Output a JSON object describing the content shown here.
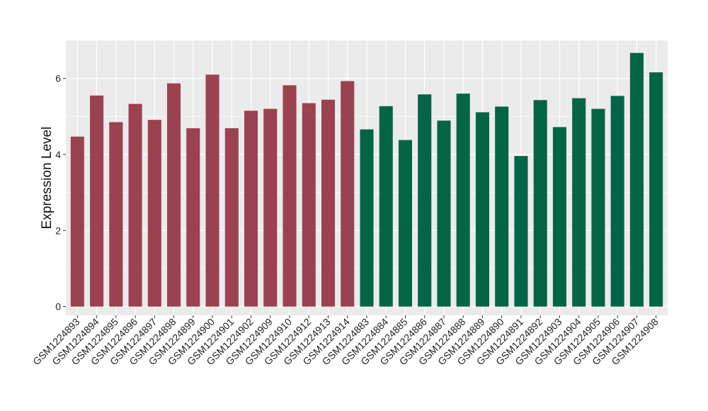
{
  "chart_data": {
    "type": "bar",
    "title": "",
    "xlabel": "",
    "ylabel": "Expression Level",
    "ylim": [
      -0.23,
      7.0
    ],
    "yticks": [
      0,
      2,
      4,
      6
    ],
    "grid": true,
    "legend": "none",
    "background_color": "#ebebeb",
    "grid_color": "#ffffff",
    "series": [
      {
        "color": "#9b4250",
        "categories": [
          "GSM1224893",
          "GSM1224894",
          "GSM1224895",
          "GSM1224896",
          "GSM1224897",
          "GSM1224898",
          "GSM1224899",
          "GSM1224900",
          "GSM1224901",
          "GSM1224902",
          "GSM1224909",
          "GSM1224910",
          "GSM1224912",
          "GSM1224913",
          "GSM1224914"
        ],
        "values": [
          4.47,
          5.55,
          4.85,
          5.33,
          4.91,
          5.87,
          4.69,
          6.1,
          4.69,
          5.15,
          5.2,
          5.82,
          5.35,
          5.44,
          5.93
        ]
      },
      {
        "color": "#046546",
        "categories": [
          "GSM1224883",
          "GSM1224884",
          "GSM1224885",
          "GSM1224886",
          "GSM1224887",
          "GSM1224888",
          "GSM1224889",
          "GSM1224890",
          "GSM1224891",
          "GSM1224892",
          "GSM1224903",
          "GSM1224904",
          "GSM1224905",
          "GSM1224906",
          "GSM1224907",
          "GSM1224908"
        ],
        "values": [
          4.66,
          5.27,
          4.38,
          5.58,
          4.89,
          5.6,
          5.11,
          5.26,
          3.96,
          5.43,
          4.72,
          5.48,
          5.2,
          5.54,
          6.67,
          6.16
        ]
      }
    ]
  }
}
